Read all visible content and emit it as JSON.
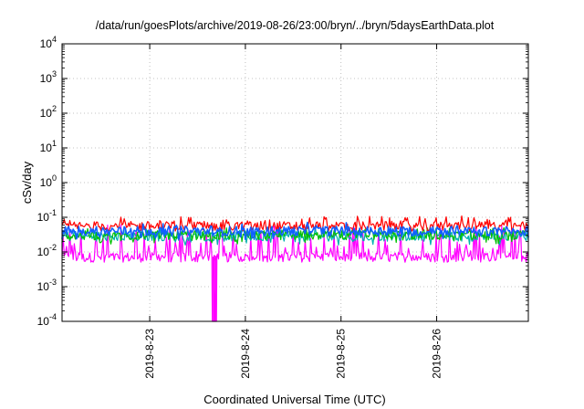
{
  "chart_data": {
    "type": "line",
    "title": "/data/run/goesPlots/archive/2019-08-26/23:00/bryn/../bryn/5daysEarthData.plot",
    "xlabel": "Coordinated Universal Time (UTC)",
    "ylabel": "cSv/day",
    "yscale": "log",
    "ylim": [
      0.0001,
      10000
    ],
    "y_ticks": [
      {
        "value": 0.0001,
        "label_base": "10",
        "label_exp": "-4"
      },
      {
        "value": 0.001,
        "label_base": "10",
        "label_exp": "-3"
      },
      {
        "value": 0.01,
        "label_base": "10",
        "label_exp": "-2"
      },
      {
        "value": 0.1,
        "label_base": "10",
        "label_exp": "-1"
      },
      {
        "value": 1,
        "label_base": "10",
        "label_exp": "0"
      },
      {
        "value": 10,
        "label_base": "10",
        "label_exp": "1"
      },
      {
        "value": 100,
        "label_base": "10",
        "label_exp": "2"
      },
      {
        "value": 1000,
        "label_base": "10",
        "label_exp": "3"
      },
      {
        "value": 10000,
        "label_base": "10",
        "label_exp": "4"
      }
    ],
    "xlim": [
      "2019-08-22T02:00",
      "2019-08-26T23:00"
    ],
    "x_ticks": [
      {
        "value": "2019-08-23T00:00",
        "label": "2019-8-23"
      },
      {
        "value": "2019-08-24T00:00",
        "label": "2019-8-24"
      },
      {
        "value": "2019-08-25T00:00",
        "label": "2019-8-25"
      },
      {
        "value": "2019-08-26T00:00",
        "label": "2019-8-26"
      }
    ],
    "grid": true,
    "colors": {
      "red": "#ff0000",
      "green": "#00c000",
      "cyan": "#00b0b0",
      "blue": "#1060ff",
      "magenta": "#ff00ff"
    },
    "series": [
      {
        "color": "#ff0000",
        "typical_value": 0.055,
        "min_value": 0.04,
        "max_value": 0.13
      },
      {
        "color": "#00c000",
        "typical_value": 0.03,
        "min_value": 0.015,
        "max_value": 0.05
      },
      {
        "color": "#00b0b0",
        "typical_value": 0.028,
        "min_value": 0.015,
        "max_value": 0.05
      },
      {
        "color": "#1060ff",
        "typical_value": 0.04,
        "min_value": 0.02,
        "max_value": 0.08
      },
      {
        "color": "#ff00ff",
        "typical_value": 0.007,
        "min_value": 0.0001,
        "max_value": 0.06,
        "dropout": {
          "time": "2019-08-23T16:00",
          "value": 0.0001
        }
      }
    ]
  }
}
